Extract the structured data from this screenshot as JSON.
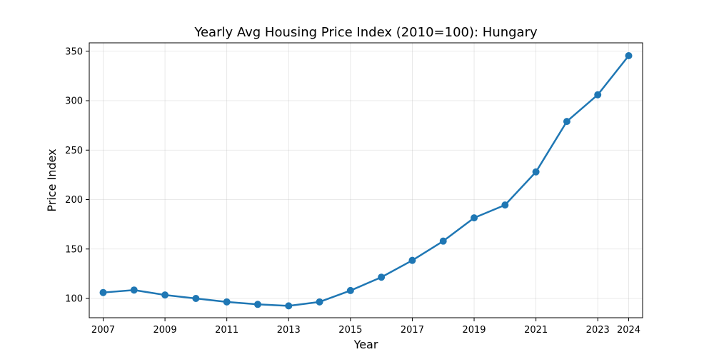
{
  "chart_data": {
    "type": "line",
    "title": "Yearly Avg Housing Price Index (2010=100): Hungary",
    "xlabel": "Year",
    "ylabel": "Price Index",
    "x": [
      2007,
      2008,
      2009,
      2010,
      2011,
      2012,
      2013,
      2014,
      2015,
      2016,
      2017,
      2018,
      2019,
      2020,
      2021,
      2022,
      2023,
      2024
    ],
    "x_ticks": [
      2007,
      2009,
      2011,
      2013,
      2015,
      2017,
      2019,
      2021,
      2023,
      2024
    ],
    "y_ticks": [
      100,
      150,
      200,
      250,
      300,
      350
    ],
    "xlim": [
      2006.55,
      2024.45
    ],
    "ylim": [
      80.5,
      358.5
    ],
    "grid": true,
    "series": [
      {
        "values": [
          106,
          108.5,
          103.5,
          100,
          96.5,
          94,
          92.5,
          96.5,
          108,
          121.5,
          138.5,
          158,
          181.5,
          194.5,
          228,
          279,
          306,
          345.5
        ]
      }
    ],
    "colors": {
      "line": "#1f77b4",
      "marker": "#1f77b4"
    }
  }
}
